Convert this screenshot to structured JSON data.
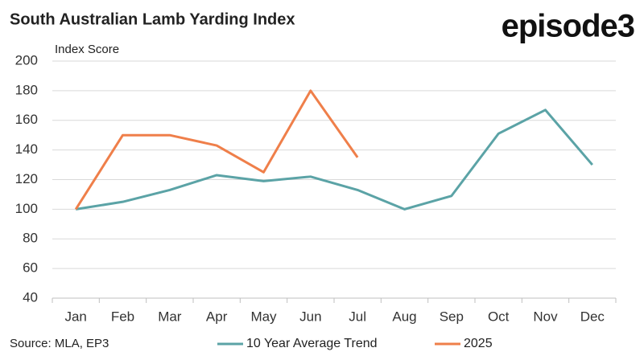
{
  "chart_data": {
    "type": "line",
    "title": "South Australian Lamb Yarding Index",
    "logo": "episode3",
    "y_axis_label": "Index Score",
    "source": "Source: MLA, EP3",
    "categories": [
      "Jan",
      "Feb",
      "Mar",
      "Apr",
      "May",
      "Jun",
      "Jul",
      "Aug",
      "Sep",
      "Oct",
      "Nov",
      "Dec"
    ],
    "series": [
      {
        "name": "10 Year Average Trend",
        "color": "#5ba3a6",
        "values": [
          100,
          105,
          113,
          123,
          119,
          122,
          113,
          100,
          109,
          151,
          167,
          130
        ]
      },
      {
        "name": "2025",
        "color": "#ef7f4a",
        "values": [
          100,
          150,
          150,
          143,
          125,
          180,
          135,
          null,
          null,
          null,
          null,
          null
        ]
      }
    ],
    "ylim": [
      40,
      200
    ],
    "yticks": [
      40,
      60,
      80,
      100,
      120,
      140,
      160,
      180,
      200
    ],
    "grid": true,
    "legend": "bottom"
  }
}
